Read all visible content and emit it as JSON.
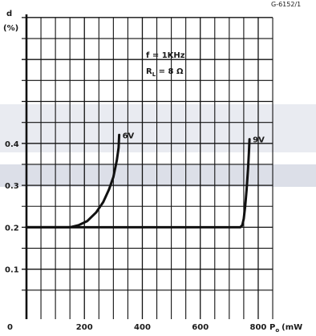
{
  "chart_data": {
    "type": "line",
    "ref_code": "G-6152/1",
    "y_axis": {
      "label_line1": "d",
      "label_line2": "(%)",
      "ticks": [
        "0",
        "0.1",
        "0.2",
        "0.3",
        "0.4"
      ],
      "tick_values": [
        0,
        0.1,
        0.2,
        0.3,
        0.4
      ],
      "range": [
        0,
        0.7
      ]
    },
    "x_axis": {
      "label": "P",
      "label_sub": "o",
      "label_unit": "(mW",
      "ticks": [
        "200",
        "400",
        "600",
        "800"
      ],
      "tick_values": [
        200,
        400,
        600,
        800
      ],
      "range": [
        0,
        850
      ]
    },
    "conditions": {
      "line1": "f = 1KHz",
      "line2_main": "R",
      "line2_sub": "L",
      "line2_rest": " = 8 Ω"
    },
    "series": [
      {
        "name": "6V",
        "points": [
          [
            0,
            0.2
          ],
          [
            100,
            0.2
          ],
          [
            150,
            0.2
          ],
          [
            180,
            0.205
          ],
          [
            210,
            0.215
          ],
          [
            240,
            0.235
          ],
          [
            265,
            0.26
          ],
          [
            285,
            0.29
          ],
          [
            300,
            0.32
          ],
          [
            312,
            0.36
          ],
          [
            318,
            0.39
          ],
          [
            320,
            0.42
          ]
        ]
      },
      {
        "name": "9V",
        "points": [
          [
            0,
            0.2
          ],
          [
            400,
            0.2
          ],
          [
            700,
            0.2
          ],
          [
            738,
            0.2
          ],
          [
            745,
            0.205
          ],
          [
            750,
            0.22
          ],
          [
            755,
            0.25
          ],
          [
            760,
            0.29
          ],
          [
            765,
            0.34
          ],
          [
            768,
            0.38
          ],
          [
            770,
            0.41
          ]
        ]
      }
    ],
    "grid": true,
    "ink_color": "#111111",
    "band_color": "#dcdfe8"
  }
}
